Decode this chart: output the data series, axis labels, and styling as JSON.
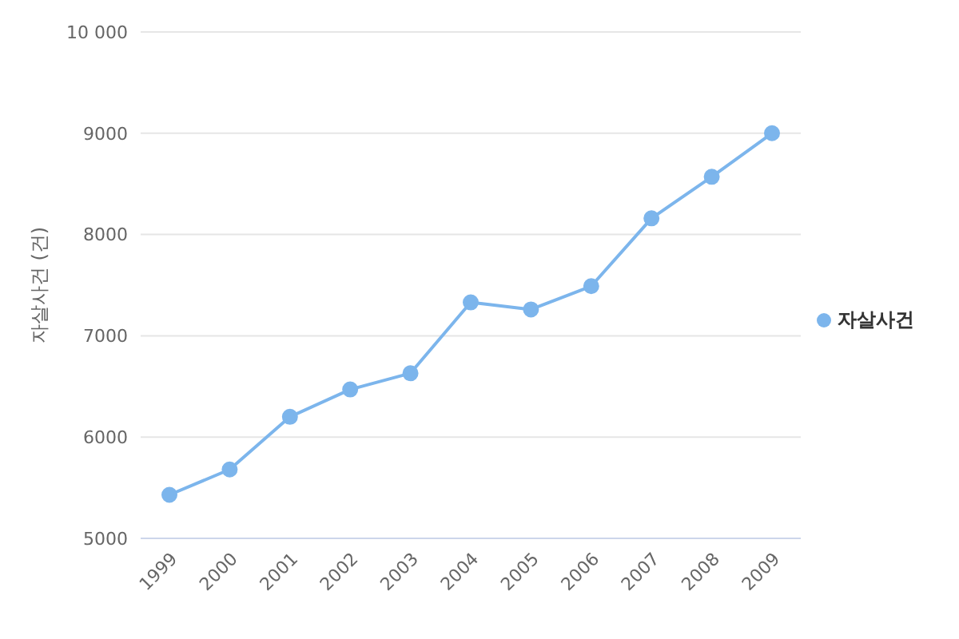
{
  "chart_data": {
    "type": "line",
    "ylabel": "자살사건 (건)",
    "categories": [
      "1999",
      "2000",
      "2001",
      "2002",
      "2003",
      "2004",
      "2005",
      "2006",
      "2007",
      "2008",
      "2009"
    ],
    "series": [
      {
        "name": "자살사건",
        "color": "#7cb5ec",
        "values": [
          5430,
          5680,
          6200,
          6470,
          6630,
          7330,
          7260,
          7490,
          8160,
          8570,
          9000
        ]
      }
    ],
    "ylim": [
      5000,
      10000
    ],
    "yticks": [
      5000,
      6000,
      7000,
      8000,
      9000,
      {
        "value": 10000,
        "label": "10 000"
      }
    ],
    "grid": "y",
    "legend": "right",
    "marker": "circle",
    "line_style": "solid"
  }
}
